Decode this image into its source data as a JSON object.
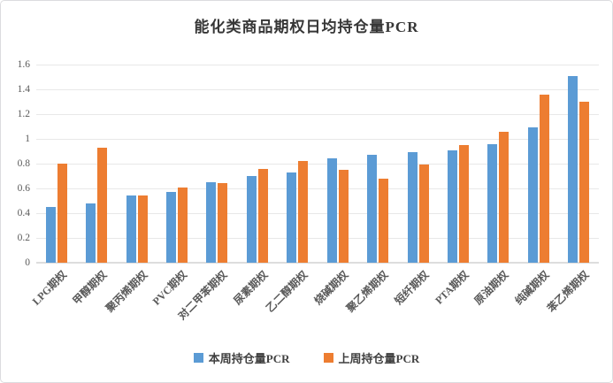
{
  "chart_data": {
    "type": "bar",
    "title": "能化类商品期权日均持仓量PCR",
    "categories": [
      "LPG期权",
      "甲醇期权",
      "聚丙烯期权",
      "PVC期权",
      "对二甲苯期权",
      "尿素期权",
      "乙二醇期权",
      "烧碱期权",
      "聚乙烯期权",
      "短纤期权",
      "PTA期权",
      "原油期权",
      "纯碱期权",
      "苯乙烯期权"
    ],
    "series": [
      {
        "name": "本周持仓量PCR",
        "color": "#5B9BD5",
        "values": [
          0.45,
          0.48,
          0.54,
          0.57,
          0.65,
          0.7,
          0.73,
          0.84,
          0.87,
          0.89,
          0.91,
          0.96,
          1.09,
          1.51
        ]
      },
      {
        "name": "上周持仓量PCR",
        "color": "#ED7D31",
        "values": [
          0.8,
          0.93,
          0.54,
          0.61,
          0.64,
          0.76,
          0.82,
          0.75,
          0.68,
          0.79,
          0.95,
          1.06,
          1.36,
          1.3
        ]
      }
    ],
    "xlabel": "",
    "ylabel": "",
    "ylim": [
      0,
      1.6
    ],
    "y_ticks": [
      "0",
      "0.2",
      "0.4",
      "0.6",
      "0.8",
      "1",
      "1.2",
      "1.4",
      "1.6"
    ],
    "grid": true,
    "legend_position": "bottom"
  },
  "colors": {
    "gridline": "#e8e8e8",
    "axis_line": "#dddddd",
    "axis_label": "#595959",
    "title": "#363636",
    "border": "#dcdcdf",
    "background": "#ffffff"
  }
}
